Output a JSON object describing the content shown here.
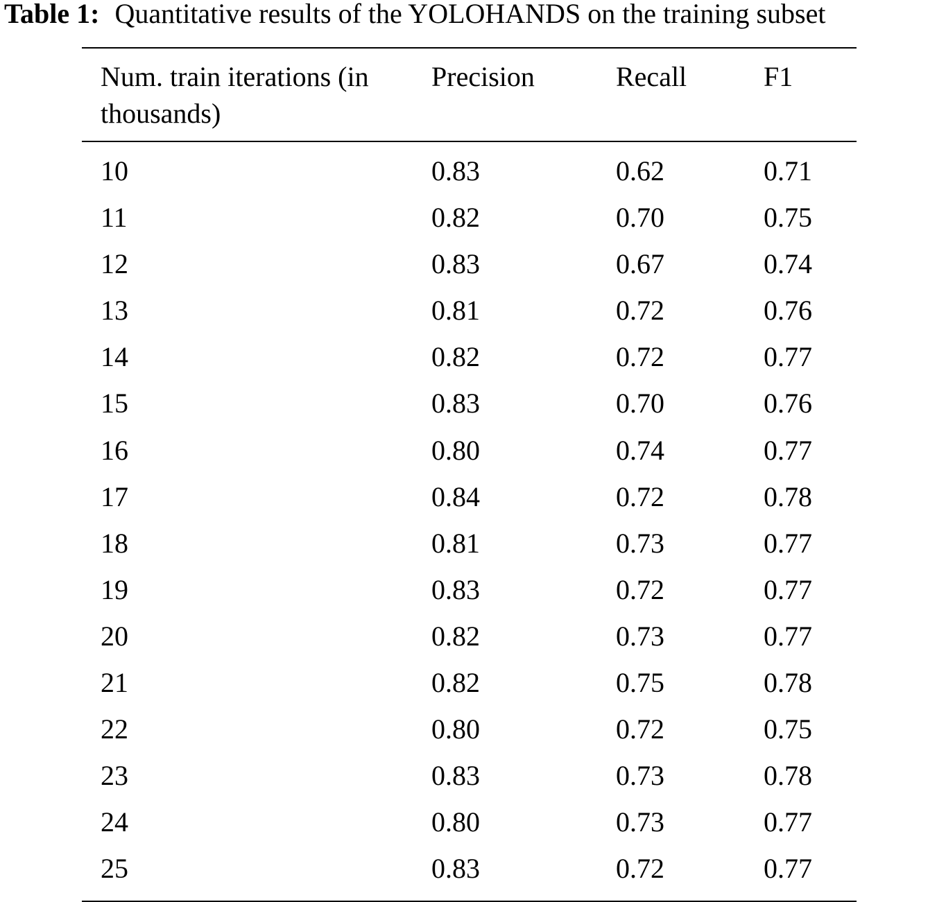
{
  "caption": {
    "label": "Table 1:",
    "text": "Quantitative results of the YOLOHANDS on the training subset"
  },
  "table": {
    "headers": {
      "iterations": "Num. train iterations (in thousands)",
      "precision": "Precision",
      "recall": "Recall",
      "f1": "F1"
    },
    "rows": [
      [
        "10",
        "0.83",
        "0.62",
        "0.71"
      ],
      [
        "11",
        "0.82",
        "0.70",
        "0.75"
      ],
      [
        "12",
        "0.83",
        "0.67",
        "0.74"
      ],
      [
        "13",
        "0.81",
        "0.72",
        "0.76"
      ],
      [
        "14",
        "0.82",
        "0.72",
        "0.77"
      ],
      [
        "15",
        "0.83",
        "0.70",
        "0.76"
      ],
      [
        "16",
        "0.80",
        "0.74",
        "0.77"
      ],
      [
        "17",
        "0.84",
        "0.72",
        "0.78"
      ],
      [
        "18",
        "0.81",
        "0.73",
        "0.77"
      ],
      [
        "19",
        "0.83",
        "0.72",
        "0.77"
      ],
      [
        "20",
        "0.82",
        "0.73",
        "0.77"
      ],
      [
        "21",
        "0.82",
        "0.75",
        "0.78"
      ],
      [
        "22",
        "0.80",
        "0.72",
        "0.75"
      ],
      [
        "23",
        "0.83",
        "0.73",
        "0.78"
      ],
      [
        "24",
        "0.80",
        "0.73",
        "0.77"
      ],
      [
        "25",
        "0.83",
        "0.72",
        "0.77"
      ]
    ]
  }
}
